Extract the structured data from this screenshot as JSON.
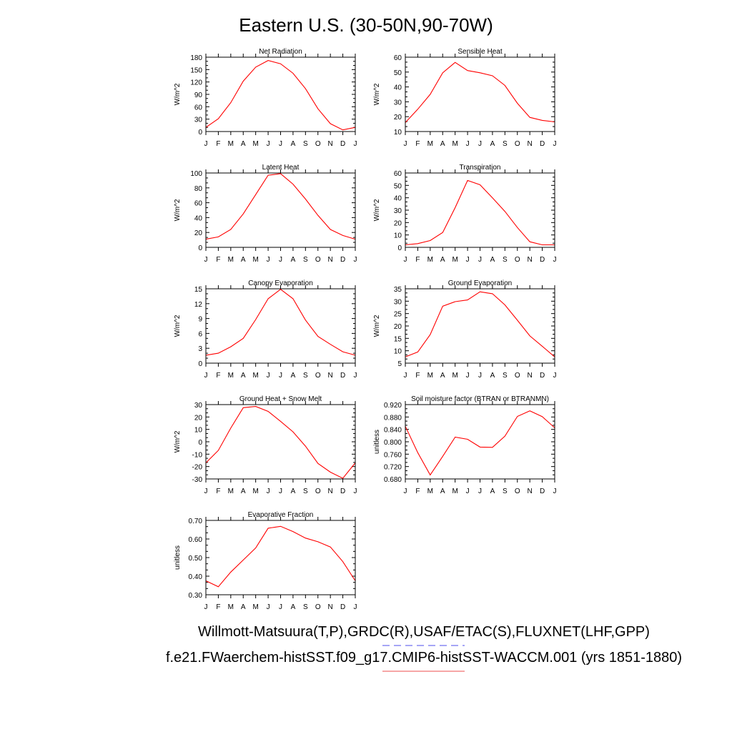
{
  "figure": {
    "title": "Eastern U.S. (30-50N,90-70W)",
    "legend": [
      {
        "text": "Willmott-Matsuura(T,P),GRDC(R),USAF/ETAC(S),FLUXNET(LHF,GPP)",
        "color": "#7070f0",
        "style": "dashed"
      },
      {
        "text": "f.e21.FWaerchem-histSST.f09_g17.CMIP6-histSST-WACCM.001 (yrs 1851-1880)",
        "color": "#f07070",
        "style": "solid"
      }
    ]
  },
  "chart_data": [
    {
      "type": "line",
      "title": "Net Radiation",
      "ylabel": "W/m^2",
      "categories": [
        "J",
        "F",
        "M",
        "A",
        "M",
        "J",
        "J",
        "A",
        "S",
        "O",
        "N",
        "D",
        "J"
      ],
      "yticks": [
        "0",
        "30",
        "60",
        "90",
        "120",
        "150",
        "180"
      ],
      "ylim": [
        0,
        180
      ],
      "series": [
        {
          "color": "#ff0000",
          "values": [
            10,
            31,
            70,
            122,
            156,
            172,
            164,
            141,
            104,
            55,
            19,
            4,
            10
          ]
        }
      ]
    },
    {
      "type": "line",
      "title": "Sensible Heat",
      "ylabel": "W/m^2",
      "categories": [
        "J",
        "F",
        "M",
        "A",
        "M",
        "J",
        "J",
        "A",
        "S",
        "O",
        "N",
        "D",
        "J"
      ],
      "yticks": [
        "10",
        "20",
        "30",
        "40",
        "50",
        "60"
      ],
      "ylim": [
        10,
        60
      ],
      "series": [
        {
          "color": "#ff0000",
          "values": [
            16,
            25,
            35,
            49.5,
            56.5,
            51,
            49.5,
            47.5,
            41,
            29,
            19.5,
            17.5,
            16.5
          ]
        }
      ]
    },
    {
      "type": "line",
      "title": "Latent Heat",
      "ylabel": "W/m^2",
      "categories": [
        "J",
        "F",
        "M",
        "A",
        "M",
        "J",
        "J",
        "A",
        "S",
        "O",
        "N",
        "D",
        "J"
      ],
      "yticks": [
        "0",
        "20",
        "40",
        "60",
        "80",
        "100"
      ],
      "ylim": [
        0,
        100
      ],
      "series": [
        {
          "color": "#ff0000",
          "values": [
            11,
            14,
            24,
            45,
            71,
            97,
            99,
            85,
            65,
            43,
            24,
            16,
            11
          ]
        }
      ]
    },
    {
      "type": "line",
      "title": "Transpiration",
      "ylabel": "W/m^2",
      "categories": [
        "J",
        "F",
        "M",
        "A",
        "M",
        "J",
        "J",
        "A",
        "S",
        "O",
        "N",
        "D",
        "J"
      ],
      "yticks": [
        "0",
        "10",
        "20",
        "30",
        "40",
        "50",
        "60"
      ],
      "ylim": [
        0,
        60
      ],
      "series": [
        {
          "color": "#ff0000",
          "values": [
            2,
            3,
            5.5,
            12,
            32,
            54,
            50.5,
            40,
            29,
            16,
            4.5,
            2,
            2
          ]
        }
      ]
    },
    {
      "type": "line",
      "title": "Canopy Evaporation",
      "ylabel": "W/m^2",
      "categories": [
        "J",
        "F",
        "M",
        "A",
        "M",
        "J",
        "J",
        "A",
        "S",
        "O",
        "N",
        "D",
        "J"
      ],
      "yticks": [
        "0",
        "3",
        "6",
        "9",
        "12",
        "15"
      ],
      "ylim": [
        0,
        15
      ],
      "series": [
        {
          "color": "#ff0000",
          "values": [
            1.6,
            2,
            3.3,
            5,
            8.8,
            13,
            14.9,
            13,
            8.7,
            5.4,
            3.8,
            2.3,
            1.6
          ]
        }
      ]
    },
    {
      "type": "line",
      "title": "Ground Evaporation",
      "ylabel": "W/m^2",
      "categories": [
        "J",
        "F",
        "M",
        "A",
        "M",
        "J",
        "J",
        "A",
        "S",
        "O",
        "N",
        "D",
        "J"
      ],
      "yticks": [
        "5",
        "10",
        "15",
        "20",
        "25",
        "30",
        "35"
      ],
      "ylim": [
        5,
        35
      ],
      "series": [
        {
          "color": "#ff0000",
          "values": [
            7.5,
            9.5,
            16.5,
            28,
            29.8,
            30.5,
            33.8,
            33,
            28.5,
            22.3,
            16,
            11.8,
            7.5
          ]
        }
      ]
    },
    {
      "type": "line",
      "title": "Ground Heat + Snow Melt",
      "ylabel": "W/m^2",
      "categories": [
        "J",
        "F",
        "M",
        "A",
        "M",
        "J",
        "J",
        "A",
        "S",
        "O",
        "N",
        "D",
        "J"
      ],
      "yticks": [
        "-30",
        "-20",
        "-10",
        "0",
        "10",
        "20",
        "30"
      ],
      "ylim": [
        -30,
        30
      ],
      "series": [
        {
          "color": "#ff0000",
          "values": [
            -17,
            -7,
            11,
            27.5,
            28.5,
            24.5,
            16.5,
            8,
            -3.5,
            -17.5,
            -24.5,
            -29.5,
            -17
          ]
        }
      ]
    },
    {
      "type": "line",
      "title": "Soil moisture factor (BTRAN or BTRANMN)",
      "ylabel": "unitless",
      "categories": [
        "J",
        "F",
        "M",
        "A",
        "M",
        "J",
        "J",
        "A",
        "S",
        "O",
        "N",
        "D",
        "J"
      ],
      "yticks": [
        "0.680",
        "0.720",
        "0.760",
        "0.800",
        "0.840",
        "0.880",
        "0.920"
      ],
      "ylim": [
        0.68,
        0.92
      ],
      "series": [
        {
          "color": "#ff0000",
          "values": [
            0.85,
            0.765,
            0.693,
            0.753,
            0.815,
            0.808,
            0.783,
            0.782,
            0.818,
            0.882,
            0.9,
            0.881,
            0.845
          ]
        }
      ]
    },
    {
      "type": "line",
      "title": "Evaporative Fraction",
      "ylabel": "unitless",
      "categories": [
        "J",
        "F",
        "M",
        "A",
        "M",
        "J",
        "J",
        "A",
        "S",
        "O",
        "N",
        "D",
        "J"
      ],
      "yticks": [
        "0.30",
        "0.40",
        "0.50",
        "0.60",
        "0.70"
      ],
      "ylim": [
        0.3,
        0.7
      ],
      "series": [
        {
          "color": "#ff0000",
          "values": [
            0.375,
            0.343,
            0.422,
            0.487,
            0.552,
            0.658,
            0.668,
            0.64,
            0.605,
            0.585,
            0.557,
            0.478,
            0.375
          ]
        }
      ]
    }
  ]
}
